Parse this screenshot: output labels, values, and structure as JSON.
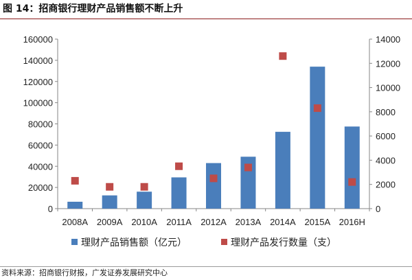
{
  "figure": {
    "title": "图 14：招商银行理财产品销售额不断上升",
    "source": "资料来源：招商银行财报，广发证券发展研究中心"
  },
  "chart_data": {
    "type": "bar+scatter",
    "categories": [
      "2008A",
      "2009A",
      "2010A",
      "2011A",
      "2012A",
      "2013A",
      "2014A",
      "2015A",
      "2016H"
    ],
    "series": [
      {
        "name": "理财产品销售额（亿元）",
        "kind": "bar",
        "axis": "left",
        "color": "#4a7ebb",
        "values": [
          6500,
          12500,
          16000,
          29500,
          43000,
          49000,
          72500,
          134000,
          77500
        ]
      },
      {
        "name": "理财产品发行数量（支）",
        "kind": "scatter",
        "axis": "right",
        "color": "#be4b48",
        "values": [
          2300,
          1800,
          1800,
          3500,
          2500,
          3400,
          12600,
          8300,
          2200
        ]
      }
    ],
    "left_axis": {
      "min": 0,
      "max": 160000,
      "ticks": [
        "0",
        "20000",
        "40000",
        "60000",
        "80000",
        "100000",
        "120000",
        "140000",
        "160000"
      ]
    },
    "right_axis": {
      "min": 0,
      "max": 14000,
      "ticks": [
        "0",
        "2000",
        "4000",
        "6000",
        "8000",
        "10000",
        "12000",
        "14000"
      ]
    },
    "grid": false,
    "legend_position": "bottom"
  }
}
